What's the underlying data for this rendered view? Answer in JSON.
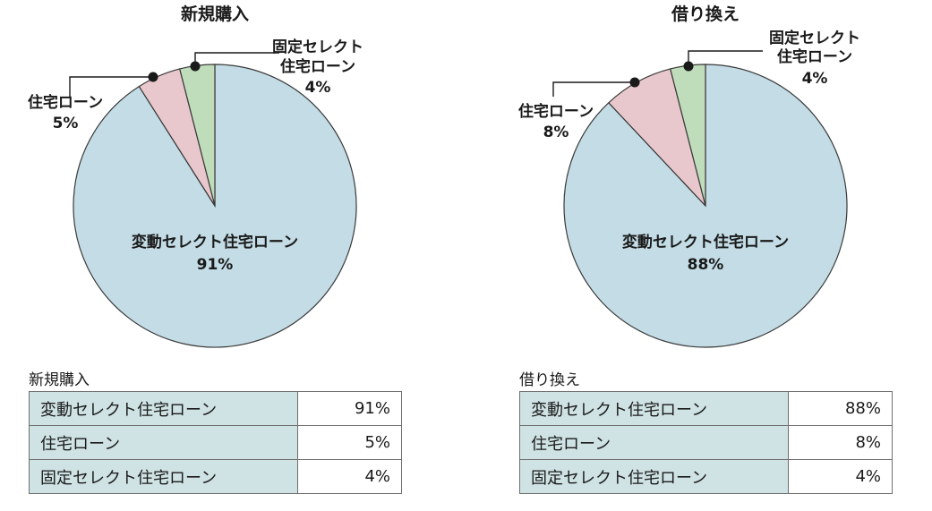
{
  "colors": {
    "variable": "#c3dce5",
    "housing": "#e8c8cc",
    "fixed": "#bfdcbb",
    "table_label_bg": "#cfe2e4"
  },
  "chart_data": [
    {
      "type": "pie",
      "title": "新規購入",
      "slices": [
        {
          "label": "変動セレクト住宅ローン",
          "value": 91,
          "value_label": "91%"
        },
        {
          "label": "住宅ローン",
          "value": 5,
          "value_label": "5%"
        },
        {
          "label": "固定セレクト住宅ローン",
          "label_lines": [
            "固定セレクト",
            "住宅ローン"
          ],
          "value": 4,
          "value_label": "4%"
        }
      ]
    },
    {
      "type": "pie",
      "title": "借り換え",
      "slices": [
        {
          "label": "変動セレクト住宅ローン",
          "value": 88,
          "value_label": "88%"
        },
        {
          "label": "住宅ローン",
          "value": 8,
          "value_label": "8%"
        },
        {
          "label": "固定セレクト住宅ローン",
          "label_lines": [
            "固定セレクト",
            "住宅ローン"
          ],
          "value": 4,
          "value_label": "4%"
        }
      ]
    }
  ],
  "tables": [
    {
      "caption": "新規購入",
      "rows": [
        {
          "label": "変動セレクト住宅ローン",
          "value": "91%"
        },
        {
          "label": "住宅ローン",
          "value": "5%"
        },
        {
          "label": "固定セレクト住宅ローン",
          "value": "4%"
        }
      ]
    },
    {
      "caption": "借り換え",
      "rows": [
        {
          "label": "変動セレクト住宅ローン",
          "value": "88%"
        },
        {
          "label": "住宅ローン",
          "value": "8%"
        },
        {
          "label": "固定セレクト住宅ローン",
          "value": "4%"
        }
      ]
    }
  ]
}
